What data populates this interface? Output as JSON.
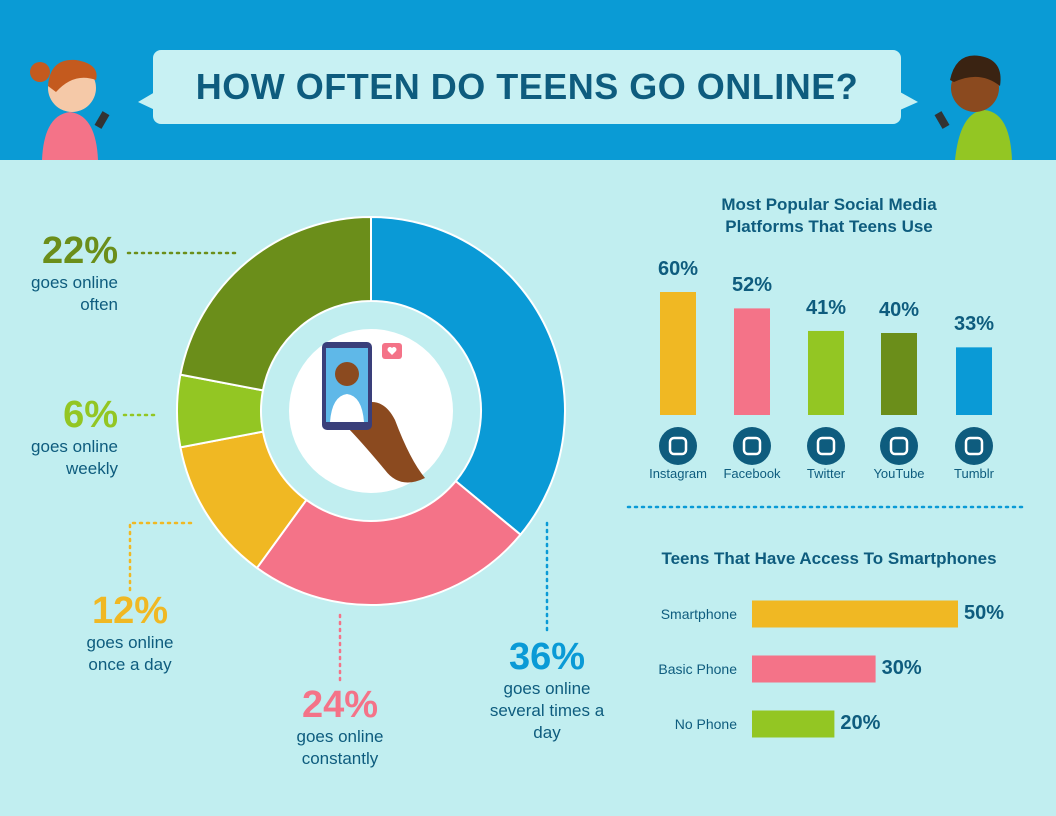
{
  "title": "HOW OFTEN DO TEENS GO ONLINE?",
  "chart_data": [
    {
      "type": "donut",
      "categories": [
        "goes online several times a day",
        "goes online constantly",
        "goes online once a day",
        "goes online weekly",
        "goes online often"
      ],
      "values": [
        36,
        24,
        12,
        6,
        22
      ],
      "value_labels": [
        "36%",
        "24%",
        "12%",
        "6%",
        "22%"
      ],
      "colors": [
        "#0a9ad6",
        "#f47388",
        "#f0b823",
        "#93c623",
        "#6b8e1a"
      ]
    },
    {
      "type": "bar",
      "title": "Most Popular Social Media Platforms That Teens Use",
      "categories": [
        "Instagram",
        "Facebook",
        "Twitter",
        "YouTube",
        "Tumblr"
      ],
      "values": [
        60,
        52,
        41,
        40,
        33
      ],
      "value_labels": [
        "60%",
        "52%",
        "41%",
        "40%",
        "33%"
      ],
      "colors": [
        "#f0b823",
        "#f47388",
        "#93c623",
        "#6b8e1a",
        "#0a9ad6"
      ]
    },
    {
      "type": "barh",
      "title": "Teens That Have Access To Smartphones",
      "categories": [
        "Smartphone",
        "Basic Phone",
        "No Phone"
      ],
      "values": [
        50,
        30,
        20
      ],
      "value_labels": [
        "50%",
        "30%",
        "20%"
      ],
      "colors": [
        "#f0b823",
        "#f47388",
        "#93c623"
      ]
    }
  ]
}
